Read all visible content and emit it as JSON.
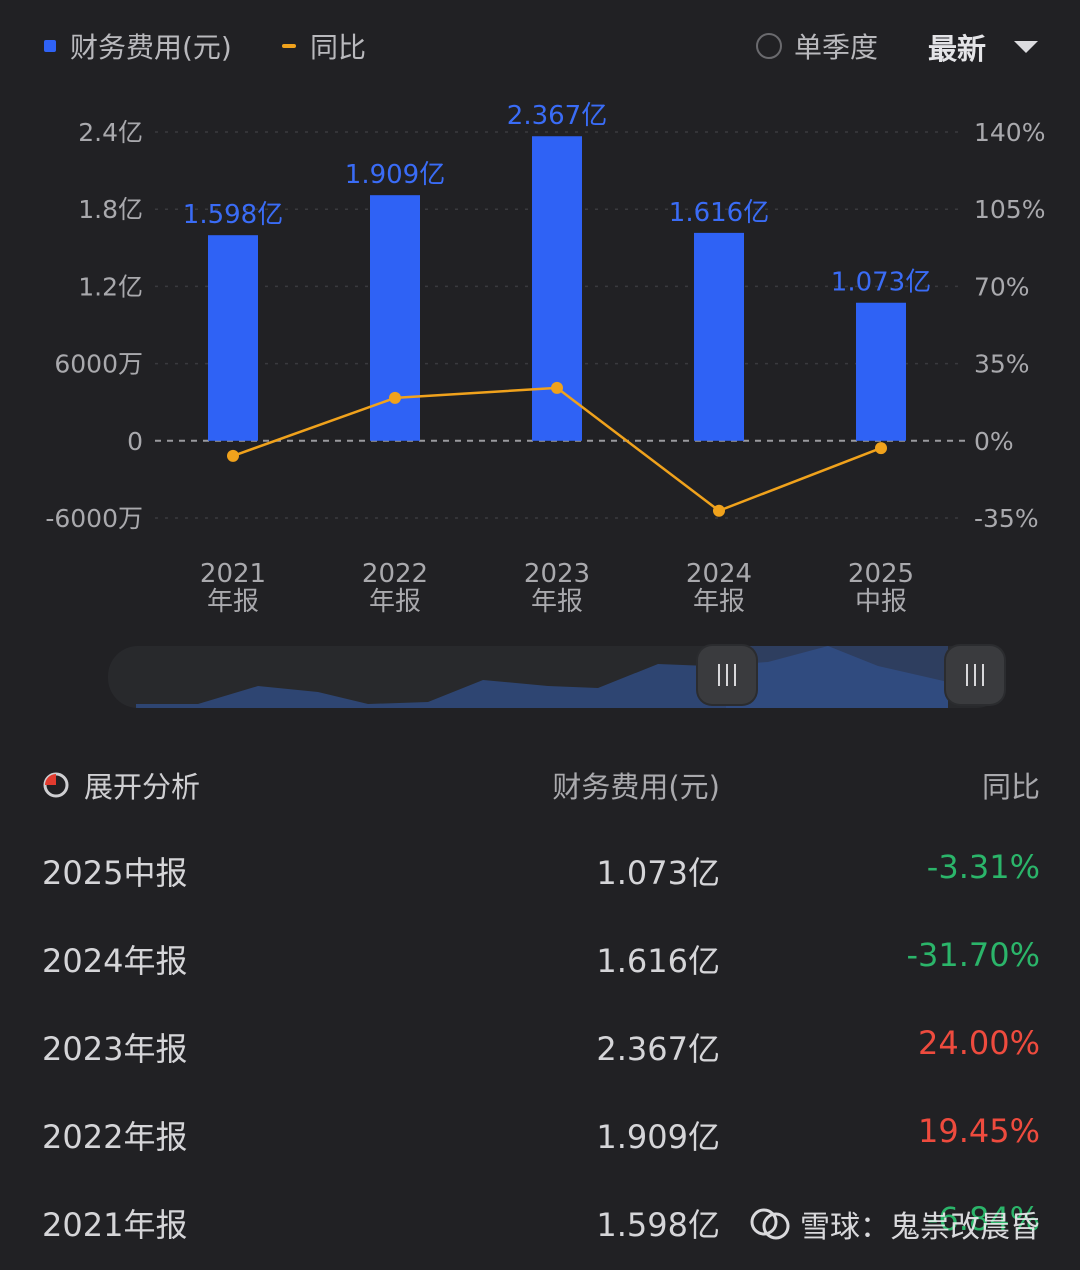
{
  "legend": {
    "bar_label": "财务费用(元)",
    "line_label": "同比"
  },
  "controls": {
    "single_season": "单季度",
    "latest": "最新"
  },
  "chart_data": {
    "type": "bar",
    "categories": [
      [
        "2021",
        "年报"
      ],
      [
        "2022",
        "年报"
      ],
      [
        "2023",
        "年报"
      ],
      [
        "2024",
        "年报"
      ],
      [
        "2025",
        "中报"
      ]
    ],
    "series": [
      {
        "values": [
          1.598,
          1.909,
          2.367,
          1.616,
          1.073
        ],
        "unit": "亿",
        "labels": [
          "1.598亿",
          "1.909亿",
          "2.367亿",
          "1.616亿",
          "1.073亿"
        ],
        "axis": "left"
      },
      {
        "values": [
          -6.84,
          19.45,
          24.0,
          -31.7,
          -3.31
        ],
        "unit": "%",
        "axis": "right"
      }
    ],
    "y_left_ticks": [
      "2.4亿",
      "1.8亿",
      "1.2亿",
      "6000万",
      "0",
      "-6000万"
    ],
    "y_left_range": [
      -0.6,
      2.4
    ],
    "y_right_ticks": [
      "140%",
      "105%",
      "70%",
      "35%",
      "0%",
      "-35%"
    ],
    "y_right_range": [
      -35,
      140
    ],
    "colors": {
      "bar": "#2f62f5",
      "line": "#f0a21c",
      "bar_label": "#3a6cf6"
    }
  },
  "table": {
    "expand_label": "展开分析",
    "col_amount": "财务费用(元)",
    "col_yoy": "同比",
    "rows": [
      {
        "period": "2025中报",
        "amount": "1.073亿",
        "yoy": "-3.31%"
      },
      {
        "period": "2024年报",
        "amount": "1.616亿",
        "yoy": "-31.70%"
      },
      {
        "period": "2023年报",
        "amount": "2.367亿",
        "yoy": "24.00%"
      },
      {
        "period": "2022年报",
        "amount": "1.909亿",
        "yoy": "19.45%"
      },
      {
        "period": "2021年报",
        "amount": "1.598亿",
        "yoy": "-6.84%"
      }
    ]
  },
  "colors": {
    "negative": "#2bb56a",
    "positive": "#ee4b3e",
    "background": "#212124"
  },
  "watermark": "雪球：鬼祟改晨昏"
}
